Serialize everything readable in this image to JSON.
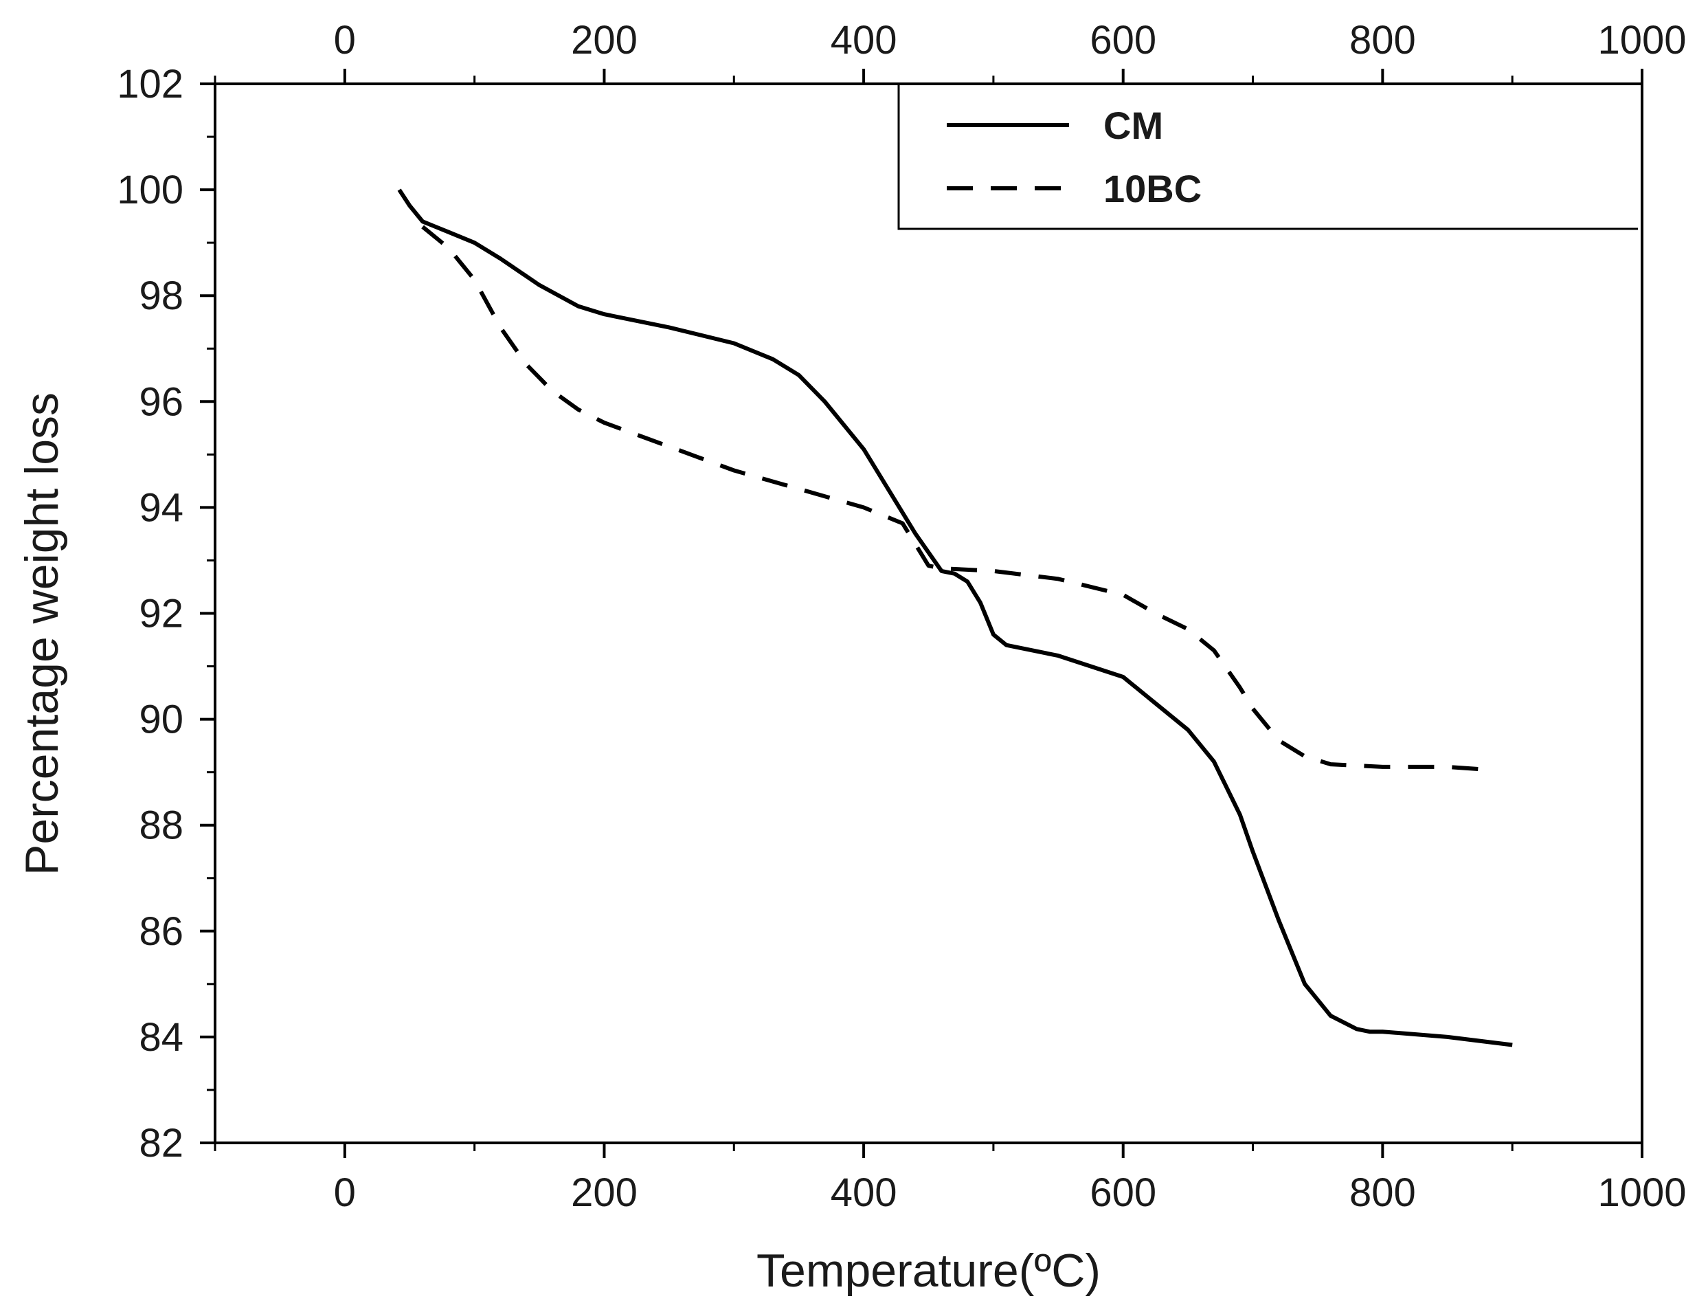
{
  "chart_data": {
    "type": "line",
    "xlabel": "Temperature(ºC)",
    "ylabel": "Percentage weight loss",
    "xlim": [
      -100,
      1000
    ],
    "ylim": [
      82,
      102
    ],
    "x_ticks": [
      0,
      200,
      400,
      600,
      800,
      1000
    ],
    "x_tick_labels": [
      "0",
      "200",
      "400",
      "600",
      "800",
      "1000"
    ],
    "top_x_tick_labels": [
      "0",
      "200",
      "400",
      "600",
      "800",
      "1000"
    ],
    "y_ticks": [
      82,
      84,
      86,
      88,
      90,
      92,
      94,
      96,
      98,
      100,
      102
    ],
    "y_tick_labels": [
      "82",
      "84",
      "86",
      "88",
      "90",
      "92",
      "94",
      "96",
      "98",
      "100",
      "102"
    ],
    "grid": false,
    "legend_position": "top-right",
    "series": [
      {
        "name": "CM",
        "line_style": "solid",
        "color": "#000000",
        "x": [
          42,
          50,
          60,
          70,
          80,
          100,
          120,
          150,
          180,
          200,
          250,
          300,
          330,
          350,
          370,
          400,
          420,
          440,
          460,
          470,
          480,
          490,
          500,
          510,
          550,
          600,
          625,
          650,
          670,
          690,
          700,
          720,
          740,
          760,
          780,
          790,
          800,
          850,
          900
        ],
        "y": [
          100.0,
          99.7,
          99.4,
          99.3,
          99.2,
          99.0,
          98.7,
          98.2,
          97.8,
          97.65,
          97.4,
          97.1,
          96.8,
          96.5,
          96.0,
          95.1,
          94.3,
          93.5,
          92.8,
          92.75,
          92.6,
          92.2,
          91.6,
          91.4,
          91.2,
          90.8,
          90.3,
          89.8,
          89.2,
          88.2,
          87.5,
          86.2,
          85.0,
          84.4,
          84.15,
          84.1,
          84.1,
          84.0,
          83.85
        ]
      },
      {
        "name": "10BC",
        "line_style": "dashed",
        "color": "#000000",
        "x": [
          60,
          70,
          80,
          100,
          120,
          140,
          160,
          180,
          200,
          250,
          300,
          350,
          400,
          430,
          440,
          450,
          460,
          500,
          550,
          600,
          625,
          650,
          670,
          690,
          700,
          720,
          740,
          760,
          800,
          850,
          880
        ],
        "y": [
          99.3,
          99.1,
          98.9,
          98.3,
          97.4,
          96.7,
          96.2,
          95.85,
          95.6,
          95.15,
          94.7,
          94.35,
          94.0,
          93.7,
          93.3,
          92.9,
          92.85,
          92.8,
          92.65,
          92.35,
          92.0,
          91.7,
          91.3,
          90.6,
          90.2,
          89.6,
          89.3,
          89.15,
          89.1,
          89.1,
          89.05
        ]
      }
    ]
  }
}
